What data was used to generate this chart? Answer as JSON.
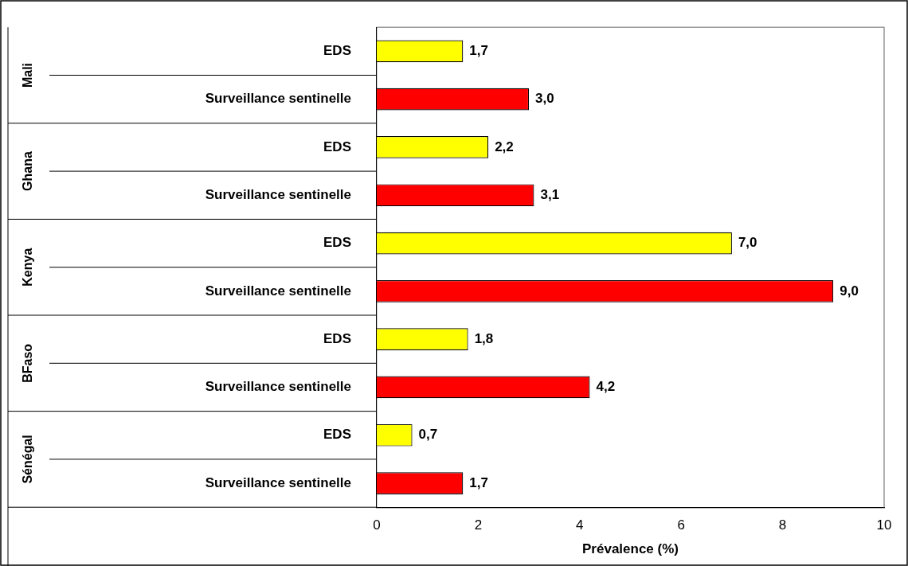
{
  "chart_data": {
    "type": "bar",
    "orientation": "horizontal",
    "xlabel": "Prévalence (%)",
    "categories": [
      "EDS",
      "Surveillance sentinelle",
      "EDS",
      "Surveillance sentinelle",
      "EDS",
      "Surveillance sentinelle",
      "EDS",
      "Surveillance sentinelle",
      "EDS",
      "Surveillance sentinelle"
    ],
    "values": [
      1.7,
      3.0,
      2.2,
      3.1,
      7.0,
      9.0,
      1.8,
      4.2,
      0.7,
      1.7
    ],
    "value_labels": [
      "1,7",
      "3,0",
      "2,2",
      "3,1",
      "7,0",
      "9,0",
      "1,8",
      "4,2",
      "0,7",
      "1,7"
    ],
    "colors": [
      "#ffff00",
      "#ff0000",
      "#ffff00",
      "#ff0000",
      "#ffff00",
      "#ff0000",
      "#ffff00",
      "#ff0000",
      "#ffff00",
      "#ff0000"
    ],
    "xlim": [
      0,
      10
    ],
    "xticks": [
      0,
      2,
      4,
      6,
      8,
      10
    ],
    "annotations": [
      "Mali",
      "Ghana",
      "Kenya",
      "BFaso",
      "Sénégal"
    ]
  }
}
